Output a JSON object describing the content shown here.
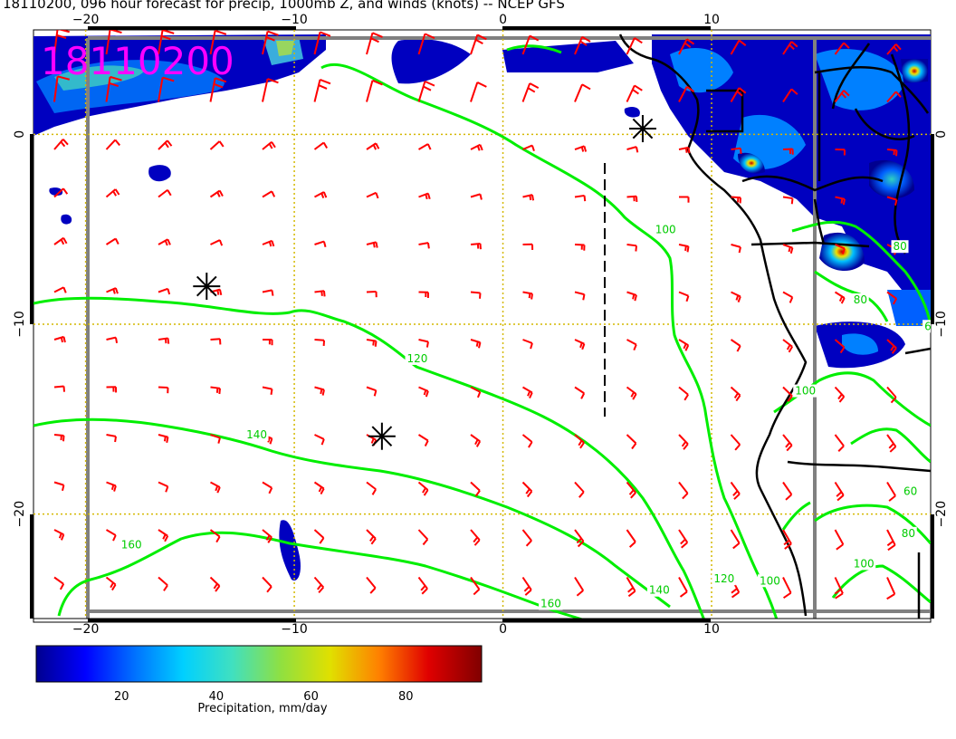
{
  "title": "18110200, 096 hour forecast for precip, 1000mb Z, and winds (knots) -- NCEP GFS",
  "stamp": "18110200",
  "map": {
    "lon_range": [
      -22.5,
      20.5
    ],
    "lat_range": [
      -25.5,
      5.5
    ],
    "x_ticks": [
      -20,
      -10,
      0,
      10
    ],
    "y_ticks": [
      0,
      -10,
      -20
    ],
    "lon_grid": [
      -20,
      -10,
      0,
      10
    ],
    "lat_grid": [
      0,
      -10,
      -20
    ],
    "markers": [
      {
        "lon": -14.2,
        "lat": -8.0
      },
      {
        "lon": -5.8,
        "lat": -15.9
      },
      {
        "lon": 6.7,
        "lat": 0.3
      }
    ],
    "contour_labels": [
      {
        "text": "100",
        "lon": 7.3,
        "lat": -5.2
      },
      {
        "text": "120",
        "lon": -4.6,
        "lat": -12.0
      },
      {
        "text": "140",
        "lon": -12.3,
        "lat": -16.0
      },
      {
        "text": "160",
        "lon": -18.3,
        "lat": -21.8
      },
      {
        "text": "140",
        "lon": 7.0,
        "lat": -24.2
      },
      {
        "text": "120",
        "lon": 10.1,
        "lat": -23.6
      },
      {
        "text": "100",
        "lon": 12.3,
        "lat": -23.7
      },
      {
        "text": "160",
        "lon": 1.8,
        "lat": -24.9
      },
      {
        "text": "80",
        "lon": 18.7,
        "lat": -6.1
      },
      {
        "text": "80",
        "lon": 16.8,
        "lat": -8.9
      },
      {
        "text": "100",
        "lon": 14.0,
        "lat": -13.7
      },
      {
        "text": "60",
        "lon": 19.2,
        "lat": -19.0
      },
      {
        "text": "80",
        "lon": 19.1,
        "lat": -21.2
      },
      {
        "text": "100",
        "lon": 16.8,
        "lat": -22.8
      },
      {
        "text": "60",
        "lon": 20.2,
        "lat": -10.3
      }
    ]
  },
  "colorbar": {
    "min": 2,
    "max": 96,
    "ticks": [
      20,
      40,
      60,
      80
    ],
    "label": "Precipitation, mm/day",
    "colors": [
      "#00008f",
      "#0000ff",
      "#0070ff",
      "#00d0ff",
      "#40e0c0",
      "#90e040",
      "#e0e000",
      "#ff8000",
      "#e00000",
      "#800000"
    ]
  },
  "colors": {
    "wind": "#ff0000",
    "contour": "#00ee00",
    "grid": "#d4b800",
    "border_gray": "#808080"
  }
}
